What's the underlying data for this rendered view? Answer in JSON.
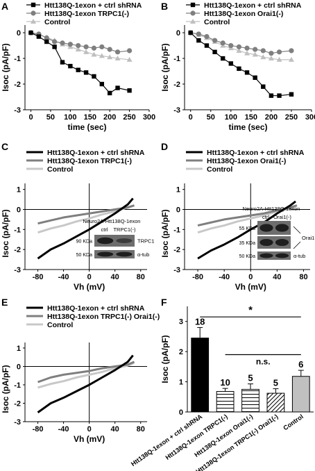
{
  "chart_data": [
    {
      "panel": "A",
      "type": "scatter",
      "xlabel": "time (sec)",
      "ylabel": "Isoc (pA/pF)",
      "xlim": [
        -15,
        300
      ],
      "ylim": [
        -3,
        0.3
      ],
      "xticks": [
        0,
        50,
        100,
        150,
        200,
        250,
        300
      ],
      "yticks": [
        0,
        -1,
        -2,
        -3
      ],
      "legend_position": "top-left",
      "series": [
        {
          "name": "Htt138Q-1exon + ctrl shRNA",
          "marker": "square",
          "color": "#000000",
          "x": [
            0,
            20,
            40,
            60,
            80,
            100,
            120,
            140,
            160,
            180,
            200,
            220,
            250
          ],
          "y": [
            0,
            -0.15,
            -0.35,
            -0.55,
            -1.15,
            -1.3,
            -1.45,
            -1.55,
            -1.7,
            -2.0,
            -2.35,
            -2.15,
            -2.25
          ]
        },
        {
          "name": "Htt138Q-1exon TRPC1(-)",
          "marker": "circle",
          "color": "#7f7f7f",
          "x": [
            0,
            20,
            40,
            60,
            80,
            100,
            120,
            140,
            160,
            180,
            200,
            220,
            250
          ],
          "y": [
            0,
            -0.05,
            -0.2,
            -0.35,
            -0.4,
            -0.45,
            -0.5,
            -0.55,
            -0.6,
            -0.55,
            -0.65,
            -0.75,
            -0.7
          ]
        },
        {
          "name": "Control",
          "marker": "triangle",
          "color": "#bfbfbf",
          "x": [
            0,
            20,
            40,
            60,
            80,
            100,
            120,
            140,
            160,
            180,
            200,
            220,
            250
          ],
          "y": [
            0,
            -0.08,
            -0.18,
            -0.3,
            -0.45,
            -0.55,
            -0.65,
            -0.75,
            -0.85,
            -0.9,
            -0.95,
            -1.0,
            -1.05
          ]
        }
      ]
    },
    {
      "panel": "B",
      "type": "scatter",
      "xlabel": "time (sec)",
      "ylabel": "Isoc (pA/pF)",
      "xlim": [
        -15,
        300
      ],
      "ylim": [
        -3,
        0.3
      ],
      "xticks": [
        0,
        50,
        100,
        150,
        200,
        250,
        300
      ],
      "yticks": [
        0,
        -1,
        -2,
        -3
      ],
      "legend_position": "top-left",
      "series": [
        {
          "name": "Htt138Q-1exon + ctrl shRNA",
          "marker": "square",
          "color": "#000000",
          "x": [
            0,
            20,
            40,
            60,
            80,
            100,
            120,
            140,
            160,
            180,
            200,
            220,
            250
          ],
          "y": [
            0,
            -0.3,
            -0.5,
            -0.75,
            -1.0,
            -1.2,
            -1.4,
            -1.55,
            -1.75,
            -2.1,
            -2.45,
            -2.45,
            -2.4
          ]
        },
        {
          "name": "Htt138Q-1exon Orai1(-)",
          "marker": "circle",
          "color": "#7f7f7f",
          "x": [
            0,
            20,
            40,
            60,
            80,
            100,
            120,
            140,
            160,
            180,
            200,
            220,
            250
          ],
          "y": [
            0,
            -0.05,
            -0.15,
            -0.3,
            -0.4,
            -0.5,
            -0.55,
            -0.6,
            -0.65,
            -0.7,
            -0.8,
            -0.75,
            -0.7
          ]
        },
        {
          "name": "Control",
          "marker": "triangle",
          "color": "#bfbfbf",
          "x": [
            0,
            20,
            40,
            60,
            80,
            100,
            120,
            140,
            160,
            180,
            200,
            220,
            250
          ],
          "y": [
            0,
            -0.08,
            -0.2,
            -0.35,
            -0.5,
            -0.6,
            -0.7,
            -0.8,
            -0.85,
            -0.95,
            -1.0,
            -1.05,
            -1.05
          ]
        }
      ]
    },
    {
      "panel": "C",
      "type": "line",
      "xlabel": "Vh (mV)",
      "ylabel": "Isoc (pA/pF)",
      "xlim": [
        -100,
        90
      ],
      "ylim": [
        -3,
        1.3
      ],
      "xticks": [
        -80,
        -40,
        0,
        40,
        80
      ],
      "yticks": [
        1,
        0,
        -1,
        -2,
        -3
      ],
      "legend_position": "top",
      "series": [
        {
          "name": "Htt138Q-1exon + ctrl shRNA",
          "color": "#000000",
          "x": [
            -80,
            -60,
            -40,
            -20,
            0,
            20,
            40,
            60,
            68
          ],
          "y": [
            -2.45,
            -2.0,
            -1.7,
            -1.35,
            -1.0,
            -0.6,
            -0.2,
            0.25,
            0.55
          ]
        },
        {
          "name": "Htt138Q-1exon TRPC1(-)",
          "color": "#7f7f7f",
          "x": [
            -80,
            -60,
            -40,
            -20,
            0,
            20,
            40,
            60,
            70
          ],
          "y": [
            -0.7,
            -0.55,
            -0.4,
            -0.3,
            -0.2,
            -0.1,
            0.0,
            0.1,
            0.2
          ]
        },
        {
          "name": "Control",
          "color": "#c8c8c8",
          "x": [
            -80,
            -60,
            -40,
            -20,
            0,
            20,
            40,
            60,
            70
          ],
          "y": [
            -1.15,
            -0.95,
            -0.8,
            -0.6,
            -0.45,
            -0.25,
            -0.1,
            0.1,
            0.2
          ]
        }
      ],
      "inset": {
        "title": "Neuro2A-Htt138Q-1exon",
        "lanes": [
          "ctrl",
          "TRPC1(-)"
        ],
        "rows": [
          {
            "kda": "90 KDa",
            "label": "TRPC1"
          },
          {
            "kda": "50 KDa",
            "label": "α-tub"
          }
        ]
      }
    },
    {
      "panel": "D",
      "type": "line",
      "xlabel": "Vh (mV)",
      "ylabel": "Isoc (pA/pF)",
      "xlim": [
        -100,
        90
      ],
      "ylim": [
        -3,
        1.3
      ],
      "xticks": [
        -80,
        -40,
        0,
        40,
        80
      ],
      "yticks": [
        1,
        0,
        -1,
        -2,
        -3
      ],
      "legend_position": "top",
      "series": [
        {
          "name": "Htt138Q-1exon + ctrl shRNA",
          "color": "#000000",
          "x": [
            -80,
            -60,
            -40,
            -20,
            0,
            20,
            40,
            60,
            68
          ],
          "y": [
            -2.45,
            -2.05,
            -1.75,
            -1.4,
            -1.0,
            -0.65,
            -0.2,
            0.2,
            0.4
          ]
        },
        {
          "name": "Htt138Q-1exon Orai1(-)",
          "color": "#7f7f7f",
          "x": [
            -80,
            -60,
            -40,
            -20,
            0,
            20,
            40,
            60,
            70
          ],
          "y": [
            -0.8,
            -0.65,
            -0.5,
            -0.4,
            -0.3,
            -0.2,
            -0.05,
            0.1,
            0.2
          ]
        },
        {
          "name": "Control",
          "color": "#c8c8c8",
          "x": [
            -80,
            -60,
            -40,
            -20,
            0,
            20,
            40,
            60,
            70
          ],
          "y": [
            -1.15,
            -0.95,
            -0.8,
            -0.6,
            -0.45,
            -0.3,
            -0.1,
            0.05,
            0.2
          ]
        }
      ],
      "inset": {
        "title": "Neuro2A-Htt138Q-1exon",
        "lanes": [
          "ctrl",
          "Orai1(-)"
        ],
        "rows": [
          {
            "kda": "55 KDa",
            "label": ""
          },
          {
            "kda": "35 KDa",
            "label": ""
          },
          {
            "kda": "50 KDa",
            "label": "α-tub"
          }
        ],
        "arrow_label": "Orai1"
      }
    },
    {
      "panel": "E",
      "type": "line",
      "xlabel": "Vh (mV)",
      "ylabel": "Isoc (pA/pF)",
      "xlim": [
        -100,
        90
      ],
      "ylim": [
        -3,
        1.3
      ],
      "xticks": [
        -80,
        -40,
        0,
        40,
        80
      ],
      "yticks": [
        1,
        0,
        -1,
        -2,
        -3
      ],
      "legend_position": "top",
      "series": [
        {
          "name": "Htt138Q-1exon + ctrl shRNA",
          "color": "#000000",
          "x": [
            -80,
            -60,
            -40,
            -20,
            0,
            20,
            40,
            60,
            68
          ],
          "y": [
            -2.5,
            -2.0,
            -1.7,
            -1.35,
            -1.0,
            -0.6,
            -0.2,
            0.25,
            0.6
          ]
        },
        {
          "name": "Htt138Q-1exon TRPC1(-) Orai1(-)",
          "color": "#7f7f7f",
          "x": [
            -80,
            -60,
            -40,
            -20,
            0,
            20,
            40,
            60,
            70
          ],
          "y": [
            -0.85,
            -0.6,
            -0.45,
            -0.35,
            -0.25,
            -0.1,
            0.0,
            0.1,
            0.25
          ]
        },
        {
          "name": "Control",
          "color": "#c8c8c8",
          "x": [
            -80,
            -60,
            -40,
            -20,
            0,
            20,
            40,
            60,
            70
          ],
          "y": [
            -1.15,
            -0.95,
            -0.8,
            -0.6,
            -0.45,
            -0.3,
            -0.1,
            0.05,
            0.2
          ]
        }
      ]
    },
    {
      "panel": "F",
      "type": "bar",
      "ylabel": "Isoc (pA/pF)",
      "ylim": [
        0,
        3.5
      ],
      "yticks": [
        0,
        1,
        2,
        3
      ],
      "categories": [
        "Htt138Q-1exon + ctrl shRNA",
        "Htt138Q-1exon TRPC1(-)",
        "Htt138Q-1exon Orai1(-)",
        "Htt138Q-1exon TRPC1(-) Orai1(-)",
        "Control"
      ],
      "values": [
        2.45,
        0.68,
        0.75,
        0.62,
        1.18
      ],
      "errors": [
        0.35,
        0.1,
        0.18,
        0.15,
        0.2
      ],
      "n_labels": [
        "18",
        "10",
        "5",
        "5",
        "6"
      ],
      "fills": [
        "solid-black",
        "horizontal-lines",
        "horizontal-lines",
        "diagonal-lines",
        "solid-gray"
      ],
      "significance": {
        "star": "*",
        "ns": "n.s."
      }
    }
  ]
}
